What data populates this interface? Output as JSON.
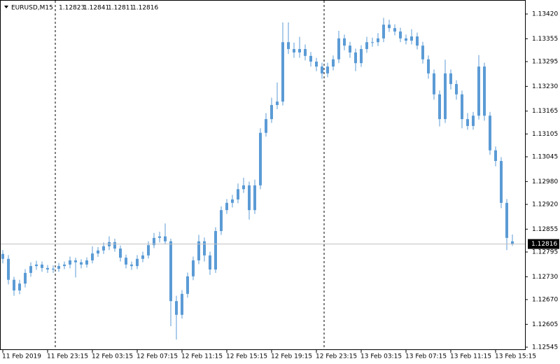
{
  "chart_data": {
    "type": "candlestick",
    "symbol": "EURUSD,M15",
    "color": "#5b9bd5",
    "ylim": [
      1.125376,
      1.134568
    ],
    "yticks": [
      {
        "value": 1.1342,
        "label": "1.13420"
      },
      1.13355,
      {
        "value": 1.13295,
        "label": "1.13295"
      },
      {
        "value": 1.1323,
        "label": "1.13230"
      },
      1.13165,
      1.13105,
      1.13045,
      {
        "value": 1.1298,
        "label": "1.12980"
      },
      {
        "value": 1.1292,
        "label": "1.12920"
      },
      1.12855,
      1.12795,
      {
        "value": 1.1273,
        "label": "1.12730"
      },
      {
        "value": 1.1267,
        "label": "1.12670"
      },
      1.12605,
      1.12545
    ],
    "categories": [
      "11 Feb 2019",
      null,
      null,
      null,
      null,
      null,
      null,
      null,
      "11 Feb 23:15",
      null,
      null,
      null,
      null,
      null,
      null,
      null,
      "12 Feb 03:15",
      null,
      null,
      null,
      null,
      null,
      null,
      null,
      "12 Feb 07:15",
      null,
      null,
      null,
      null,
      null,
      null,
      null,
      "12 Feb 11:15",
      null,
      null,
      null,
      null,
      null,
      null,
      null,
      "12 Feb 15:15",
      null,
      null,
      null,
      null,
      null,
      null,
      null,
      "12 Feb 19:15",
      null,
      null,
      null,
      null,
      null,
      null,
      null,
      "12 Feb 23:15",
      null,
      null,
      null,
      null,
      null,
      null,
      null,
      "13 Feb 03:15",
      null,
      null,
      null,
      null,
      null,
      null,
      null,
      "13 Feb 07:15",
      null,
      null,
      null,
      null,
      null,
      null,
      null,
      "13 Feb 11:15",
      null,
      null,
      null,
      null,
      null,
      null,
      null,
      "13 Feb 15:15",
      null,
      null,
      null
    ],
    "ohlc": [
      [
        1.1279,
        1.128,
        1.12765,
        1.12777
      ],
      [
        1.12777,
        1.12787,
        1.1271,
        1.12722
      ],
      [
        1.12722,
        1.1273,
        1.1268,
        1.12694
      ],
      [
        1.12694,
        1.12722,
        1.12684,
        1.12712
      ],
      [
        1.12712,
        1.1275,
        1.12702,
        1.1274
      ],
      [
        1.1274,
        1.12768,
        1.1273,
        1.12758
      ],
      [
        1.12758,
        1.12772,
        1.12748,
        1.12762
      ],
      [
        1.12762,
        1.1277,
        1.12743,
        1.12753
      ],
      [
        1.12753,
        1.12761,
        1.1274,
        1.12749
      ],
      [
        1.12749,
        1.1276,
        1.1274,
        1.12751
      ],
      [
        1.12751,
        1.12766,
        1.12743,
        1.12758
      ],
      [
        1.12758,
        1.1277,
        1.1275,
        1.12762
      ],
      [
        1.12762,
        1.12783,
        1.12752,
        1.12773
      ],
      [
        1.12773,
        1.1278,
        1.12728,
        1.12768
      ],
      [
        1.12768,
        1.12776,
        1.12752,
        1.12762
      ],
      [
        1.12762,
        1.12781,
        1.12754,
        1.12773
      ],
      [
        1.12773,
        1.1281,
        1.12765,
        1.12791
      ],
      [
        1.12791,
        1.12808,
        1.12782,
        1.12799
      ],
      [
        1.12799,
        1.1282,
        1.1279,
        1.1281
      ],
      [
        1.1281,
        1.12836,
        1.128,
        1.12821
      ],
      [
        1.12821,
        1.1283,
        1.12796,
        1.12804
      ],
      [
        1.12804,
        1.12812,
        1.1277,
        1.1278
      ],
      [
        1.1278,
        1.12788,
        1.12752,
        1.12762
      ],
      [
        1.12762,
        1.1277,
        1.12748,
        1.12758
      ],
      [
        1.12758,
        1.12787,
        1.1275,
        1.12777
      ],
      [
        1.12777,
        1.12796,
        1.12768,
        1.12786
      ],
      [
        1.12786,
        1.12823,
        1.12778,
        1.12813
      ],
      [
        1.12813,
        1.12845,
        1.12805,
        1.12832
      ],
      [
        1.12832,
        1.12848,
        1.1282,
        1.12836
      ],
      [
        1.12836,
        1.1287,
        1.12815,
        1.12823
      ],
      [
        1.12823,
        1.1283,
        1.126,
        1.12666
      ],
      [
        1.12666,
        1.1268,
        1.12565,
        1.1263
      ],
      [
        1.1263,
        1.12695,
        1.1262,
        1.12685
      ],
      [
        1.12685,
        1.12741,
        1.12675,
        1.12731
      ],
      [
        1.12731,
        1.12783,
        1.12721,
        1.12773
      ],
      [
        1.12773,
        1.1284,
        1.12763,
        1.12823
      ],
      [
        1.12823,
        1.12833,
        1.1277,
        1.12786
      ],
      [
        1.12786,
        1.12796,
        1.12735,
        1.12749
      ],
      [
        1.12749,
        1.1286,
        1.1274,
        1.1285
      ],
      [
        1.1285,
        1.12915,
        1.1284,
        1.12905
      ],
      [
        1.12905,
        1.12934,
        1.12895,
        1.12924
      ],
      [
        1.12924,
        1.12945,
        1.12912,
        1.12933
      ],
      [
        1.12933,
        1.12975,
        1.12923,
        1.1296
      ],
      [
        1.1296,
        1.1299,
        1.1295,
        1.1297
      ],
      [
        1.1297,
        1.1298,
        1.1288,
        1.12905
      ],
      [
        1.12905,
        1.12985,
        1.12895,
        1.1297
      ],
      [
        1.1297,
        1.1312,
        1.1296,
        1.13108
      ],
      [
        1.13108,
        1.1316,
        1.13098,
        1.13144
      ],
      [
        1.13144,
        1.132,
        1.13134,
        1.13181
      ],
      [
        1.13181,
        1.1324,
        1.1317,
        1.1319
      ],
      [
        1.1319,
        1.13398,
        1.1318,
        1.13346
      ],
      [
        1.13346,
        1.13398,
        1.13315,
        1.13328
      ],
      [
        1.13328,
        1.13345,
        1.13305,
        1.13319
      ],
      [
        1.13319,
        1.1336,
        1.13305,
        1.13328
      ],
      [
        1.13328,
        1.1334,
        1.13298,
        1.1331
      ],
      [
        1.1331,
        1.1332,
        1.13282,
        1.13295
      ],
      [
        1.13295,
        1.13305,
        1.1327,
        1.13282
      ],
      [
        1.13282,
        1.13292,
        1.1325,
        1.13264
      ],
      [
        1.13264,
        1.13292,
        1.13254,
        1.13282
      ],
      [
        1.13282,
        1.13311,
        1.13272,
        1.13301
      ],
      [
        1.13301,
        1.13376,
        1.13291,
        1.13356
      ],
      [
        1.13356,
        1.13366,
        1.13325,
        1.13337
      ],
      [
        1.13337,
        1.13347,
        1.13305,
        1.13319
      ],
      [
        1.13319,
        1.13329,
        1.1327,
        1.13291
      ],
      [
        1.13291,
        1.13338,
        1.13281,
        1.13328
      ],
      [
        1.13328,
        1.1336,
        1.13318,
        1.13346
      ],
      [
        1.13346,
        1.13358,
        1.13334,
        1.13346
      ],
      [
        1.13346,
        1.1337,
        1.13336,
        1.13356
      ],
      [
        1.13356,
        1.1341,
        1.13346,
        1.13392
      ],
      [
        1.13392,
        1.13405,
        1.13373,
        1.13383
      ],
      [
        1.13383,
        1.13393,
        1.13364,
        1.13374
      ],
      [
        1.13374,
        1.13384,
        1.13346,
        1.13356
      ],
      [
        1.13356,
        1.13366,
        1.1334,
        1.1335
      ],
      [
        1.1335,
        1.1338,
        1.1334,
        1.13361
      ],
      [
        1.13361,
        1.13371,
        1.13327,
        1.13337
      ],
      [
        1.13337,
        1.13347,
        1.1329,
        1.13301
      ],
      [
        1.13301,
        1.13311,
        1.1325,
        1.13264
      ],
      [
        1.13264,
        1.13274,
        1.13195,
        1.13209
      ],
      [
        1.13209,
        1.13219,
        1.13125,
        1.13144
      ],
      [
        1.13144,
        1.133,
        1.13134,
        1.13264
      ],
      [
        1.13264,
        1.13274,
        1.13222,
        1.13236
      ],
      [
        1.13236,
        1.13246,
        1.13195,
        1.13209
      ],
      [
        1.13209,
        1.13219,
        1.1312,
        1.13144
      ],
      [
        1.13144,
        1.1316,
        1.13116,
        1.13126
      ],
      [
        1.13126,
        1.13163,
        1.13116,
        1.13153
      ],
      [
        1.13153,
        1.13312,
        1.13143,
        1.13282
      ],
      [
        1.13282,
        1.13292,
        1.1314,
        1.13153
      ],
      [
        1.13153,
        1.13163,
        1.1305,
        1.13062
      ],
      [
        1.13062,
        1.13072,
        1.1302,
        1.13034
      ],
      [
        1.13034,
        1.13044,
        1.1291,
        1.12924
      ],
      [
        1.12924,
        1.12934,
        1.128,
        1.12832
      ],
      [
        1.12823,
        1.12841,
        1.12811,
        1.12816
      ]
    ]
  }
}
